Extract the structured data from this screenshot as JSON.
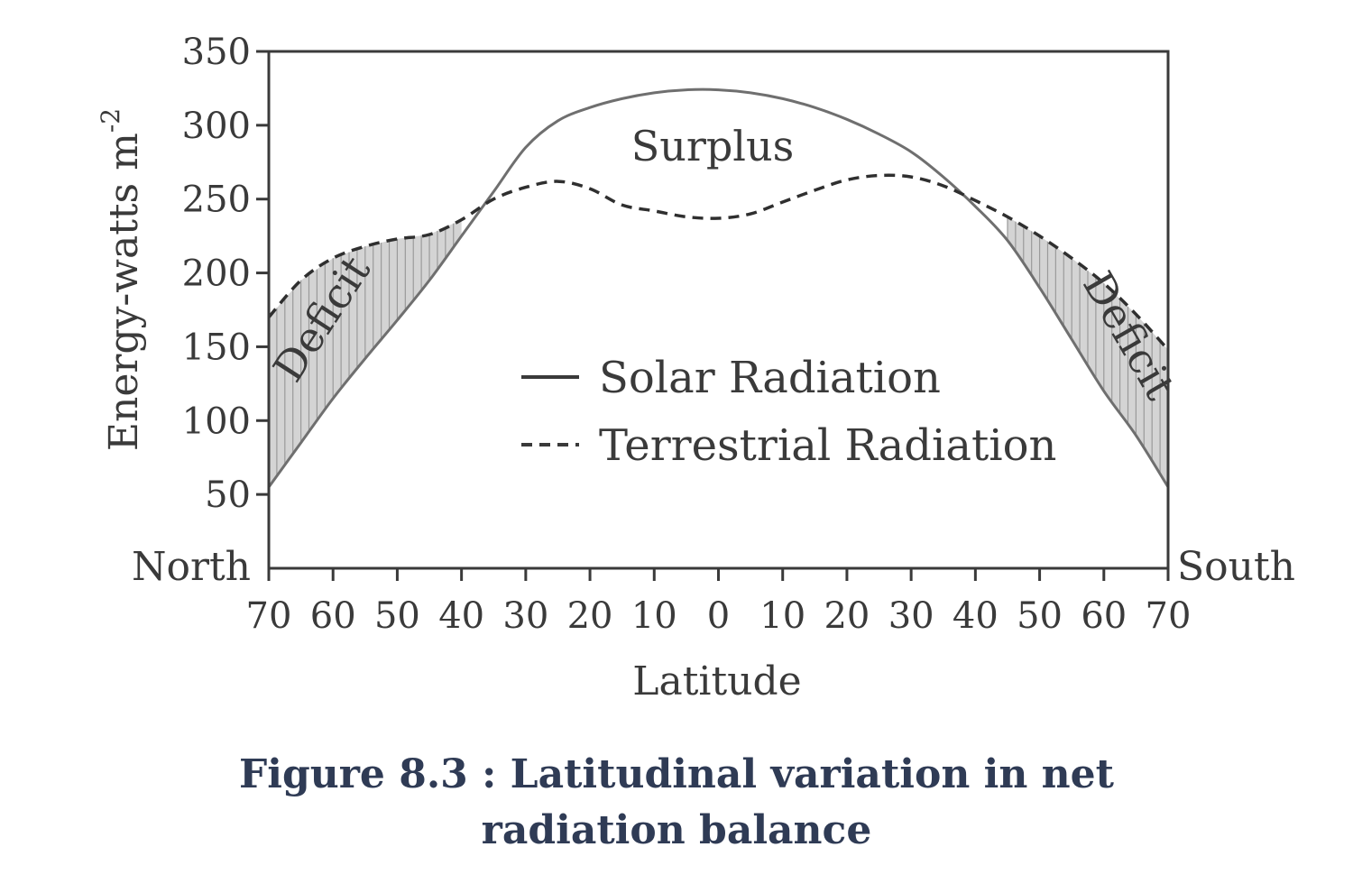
{
  "chart_data": {
    "type": "line",
    "x_ticks": [
      "70",
      "60",
      "50",
      "40",
      "30",
      "20",
      "10",
      "0",
      "10",
      "20",
      "30",
      "40",
      "50",
      "60",
      "70"
    ],
    "x_values": [
      -70,
      -60,
      -50,
      -40,
      -30,
      -20,
      -10,
      0,
      10,
      20,
      30,
      40,
      50,
      60,
      70
    ],
    "x_left_label": "North",
    "x_right_label": "South",
    "xlabel": "Latitude",
    "ylabel": "Energy-watts m",
    "ylabel_superscript": "-2",
    "ylim": [
      0,
      350
    ],
    "y_ticks": [
      50,
      100,
      150,
      200,
      250,
      300,
      350
    ],
    "xlim": [
      -70,
      70
    ],
    "series": [
      {
        "name": "Solar Radiation",
        "style": "solid",
        "x": [
          -70,
          -65,
          -60,
          -55,
          -50,
          -45,
          -40,
          -35,
          -30,
          -25,
          -20,
          -15,
          -10,
          -5,
          0,
          5,
          10,
          15,
          20,
          25,
          30,
          35,
          40,
          45,
          50,
          55,
          60,
          65,
          70
        ],
        "values": [
          55,
          85,
          115,
          142,
          168,
          195,
          225,
          255,
          285,
          303,
          312,
          318,
          322,
          324,
          324,
          322,
          318,
          312,
          304,
          294,
          282,
          265,
          245,
          222,
          190,
          155,
          120,
          90,
          55
        ]
      },
      {
        "name": "Terrestrial Radiation",
        "style": "dashed",
        "x": [
          -70,
          -65,
          -60,
          -55,
          -50,
          -45,
          -40,
          -35,
          -30,
          -25,
          -20,
          -15,
          -10,
          -5,
          0,
          5,
          10,
          15,
          20,
          25,
          30,
          35,
          40,
          45,
          50,
          55,
          60,
          65,
          70
        ],
        "values": [
          170,
          195,
          210,
          218,
          223,
          226,
          236,
          250,
          258,
          262,
          257,
          246,
          242,
          238,
          237,
          240,
          248,
          256,
          263,
          266,
          265,
          259,
          249,
          238,
          225,
          210,
          193,
          172,
          148
        ]
      }
    ],
    "annotations": {
      "surplus": "Surplus",
      "deficit_left": "Deficit",
      "deficit_right": "Deficit"
    },
    "legend_position": "center",
    "grid": false
  },
  "caption": {
    "line1": "Figure 8.3 : Latitudinal variation in net",
    "line2": "radiation balance"
  },
  "colors": {
    "ink": "#3a3a3a",
    "line": "#6f6f6f",
    "deficit_fill": "#d4d4d4",
    "caption": "#2f3b55"
  }
}
